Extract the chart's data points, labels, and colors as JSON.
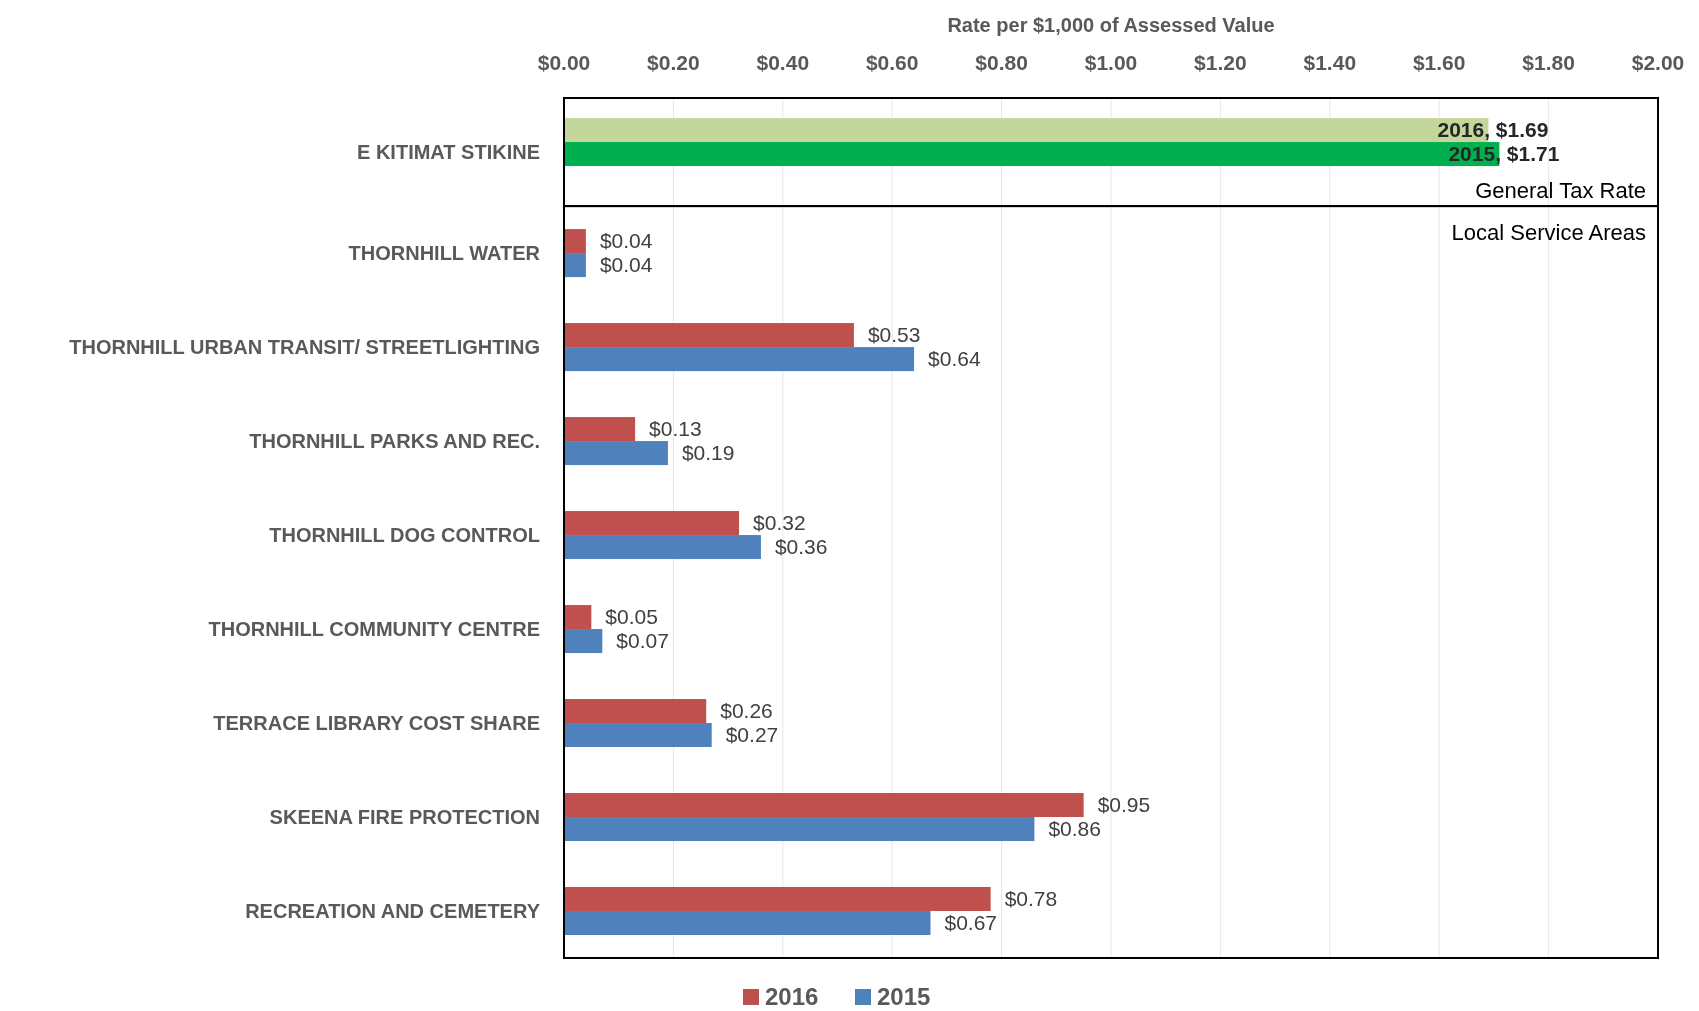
{
  "chart_data": [
    {
      "type": "bar",
      "orientation": "horizontal",
      "xlabel": "Rate per $1,000 of Assessed Value",
      "categories": [
        "E KITIMAT STIKINE"
      ],
      "series": [
        {
          "color": "#c4d79b",
          "values": [
            1.69
          ],
          "value_labels": [
            "2016, $1.69"
          ]
        },
        {
          "color": "#00b050",
          "values": [
            1.71
          ],
          "value_labels": [
            "2015, $1.71"
          ]
        }
      ],
      "xlim": [
        0,
        2
      ],
      "xticks": [
        {
          "value": 0,
          "label": "$0.00"
        },
        {
          "value": 0.2,
          "label": "$0.20"
        },
        {
          "value": 0.4,
          "label": "$0.40"
        },
        {
          "value": 0.6,
          "label": "$0.60"
        },
        {
          "value": 0.8,
          "label": "$0.80"
        },
        {
          "value": 1,
          "label": "$1.00"
        },
        {
          "value": 1.2,
          "label": "$1.20"
        },
        {
          "value": 1.4,
          "label": "$1.40"
        },
        {
          "value": 1.6,
          "label": "$1.60"
        },
        {
          "value": 1.8,
          "label": "$1.80"
        },
        {
          "value": 2,
          "label": "$2.00"
        }
      ],
      "grid": "x",
      "annotations": [
        "General Tax Rate"
      ]
    },
    {
      "type": "bar",
      "orientation": "horizontal",
      "categories": [
        "THORNHILL WATER",
        "THORNHILL URBAN TRANSIT/ STREETLIGHTING",
        "THORNHILL PARKS AND REC.",
        "THORNHILL DOG CONTROL",
        "THORNHILL COMMUNITY CENTRE",
        "TERRACE LIBRARY COST SHARE",
        "SKEENA FIRE PROTECTION",
        "RECREATION AND CEMETERY"
      ],
      "series": [
        {
          "name": "2016",
          "color": "#c0504d",
          "values": [
            0.04,
            0.53,
            0.13,
            0.32,
            0.05,
            0.26,
            0.95,
            0.78
          ],
          "value_labels": [
            "$0.04",
            "$0.53",
            "$0.13",
            "$0.32",
            "$0.05",
            "$0.26",
            "$0.95",
            "$0.78"
          ]
        },
        {
          "name": "2015",
          "color": "#4f81bd",
          "values": [
            0.04,
            0.64,
            0.19,
            0.36,
            0.07,
            0.27,
            0.86,
            0.67
          ],
          "value_labels": [
            "$0.04",
            "$0.64",
            "$0.19",
            "$0.36",
            "$0.07",
            "$0.27",
            "$0.86",
            "$0.67"
          ]
        }
      ],
      "xlim": [
        0,
        2
      ],
      "xticks": [
        {
          "value": 0,
          "label": null
        },
        {
          "value": 0.2,
          "label": null
        },
        {
          "value": 0.4,
          "label": null
        },
        {
          "value": 0.6,
          "label": null
        },
        {
          "value": 0.8,
          "label": null
        },
        {
          "value": 1,
          "label": null
        },
        {
          "value": 1.2,
          "label": null
        },
        {
          "value": 1.4,
          "label": null
        },
        {
          "value": 1.6,
          "label": null
        },
        {
          "value": 1.8,
          "label": null
        },
        {
          "value": 2,
          "label": null
        }
      ],
      "tick_labels": "y",
      "grid": "x",
      "legend": "bottom",
      "annotations": [
        "Local Service Areas"
      ]
    }
  ]
}
